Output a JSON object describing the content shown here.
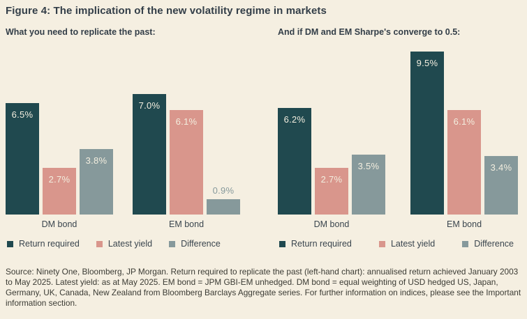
{
  "figure": {
    "title": "Figure 4: The implication of the new volatility regime in markets",
    "source_note": "Source: Ninety One, Bloomberg, JP Morgan. Return required to replicate the past (left-hand chart): annualised return achieved January 2003 to May 2025. Latest yield: as at May 2025. EM bond = JPM GBI-EM unhedged. DM bond = equal weighting of USD hedged US, Japan, Germany, UK, Canada, New Zealand from Bloomberg Barclays Aggregate series. For further information on indices, please see the Important information section."
  },
  "colors": {
    "background": "#F5EFE1",
    "return_required": "#20494F",
    "latest_yield": "#D9968C",
    "difference": "#86999B",
    "heading_text": "#333E48",
    "bar_label_light": "#F3EEDF"
  },
  "chart_data": [
    {
      "type": "bar",
      "title": "What you need to replicate the past:",
      "categories": [
        "DM bond",
        "EM bond"
      ],
      "series": [
        {
          "name": "Return required",
          "color": "#20494F",
          "values": [
            6.5,
            7.0
          ]
        },
        {
          "name": "Latest yield",
          "color": "#D9968C",
          "values": [
            2.7,
            6.1
          ]
        },
        {
          "name": "Difference",
          "color": "#86999B",
          "values": [
            3.8,
            0.9
          ]
        }
      ],
      "value_label_format": "{v}%",
      "ylim": [
        0,
        9.9
      ],
      "grid": false,
      "y_axis_visible": false,
      "legend_position": "bottom"
    },
    {
      "type": "bar",
      "title": "And if DM and EM Sharpe's converge to 0.5:",
      "categories": [
        "DM bond",
        "EM bond"
      ],
      "series": [
        {
          "name": "Return required",
          "color": "#20494F",
          "values": [
            6.2,
            9.5
          ]
        },
        {
          "name": "Latest yield",
          "color": "#D9968C",
          "values": [
            2.7,
            6.1
          ]
        },
        {
          "name": "Difference",
          "color": "#86999B",
          "values": [
            3.5,
            3.4
          ]
        }
      ],
      "value_label_format": "{v}%",
      "ylim": [
        0,
        9.9
      ],
      "grid": false,
      "y_axis_visible": false,
      "legend_position": "bottom"
    }
  ]
}
